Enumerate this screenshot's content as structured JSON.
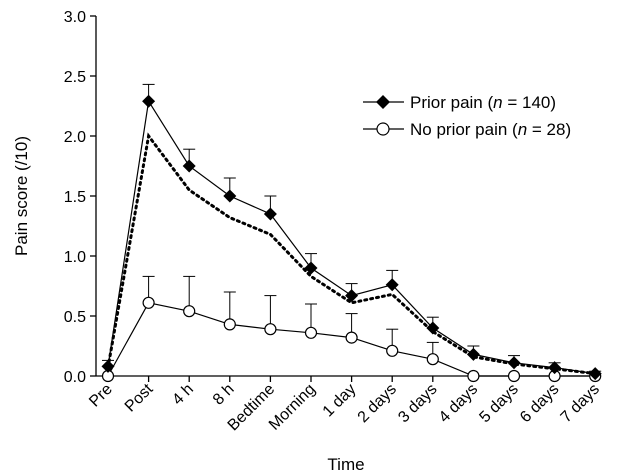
{
  "chart_data": {
    "type": "line",
    "title": "",
    "xlabel": "Time",
    "ylabel": "Pain score (/10)",
    "ylim": [
      0,
      3.0
    ],
    "y_ticks": [
      "0.0",
      "0.5",
      "1.0",
      "1.5",
      "2.0",
      "2.5",
      "3.0"
    ],
    "grid": false,
    "legend_position": "top-right",
    "categories": [
      "Pre",
      "Post",
      "4 h",
      "8 h",
      "Bedtime",
      "Morning",
      "1 day",
      "2 days",
      "3 days",
      "4 days",
      "5 days",
      "6 days",
      "7 days"
    ],
    "series": [
      {
        "legend_prefix": "Prior pain (",
        "legend_n": "n",
        "legend_suffix": " = 140)",
        "marker": "diamond-filled",
        "values": [
          0.08,
          2.29,
          1.75,
          1.5,
          1.35,
          0.9,
          0.67,
          0.76,
          0.4,
          0.18,
          0.11,
          0.07,
          0.02
        ],
        "error_plus": [
          0.05,
          0.14,
          0.14,
          0.15,
          0.15,
          0.12,
          0.1,
          0.12,
          0.09,
          0.07,
          0.06,
          0.04,
          0.02
        ]
      },
      {
        "legend_prefix": "No prior pain (",
        "legend_n": "n",
        "legend_suffix": " = 28)",
        "marker": "circle-open",
        "values": [
          0.0,
          0.61,
          0.54,
          0.43,
          0.39,
          0.36,
          0.32,
          0.21,
          0.14,
          0.0,
          0.0,
          0.0,
          0.0
        ],
        "error_plus": [
          0.0,
          0.22,
          0.29,
          0.27,
          0.28,
          0.24,
          0.2,
          0.18,
          0.14,
          0.0,
          0.0,
          0.0,
          0.0
        ]
      },
      {
        "style": "dotted",
        "values": [
          0.07,
          2.0,
          1.55,
          1.32,
          1.18,
          0.83,
          0.61,
          0.68,
          0.37,
          0.16,
          0.1,
          0.06,
          0.02
        ]
      }
    ]
  }
}
